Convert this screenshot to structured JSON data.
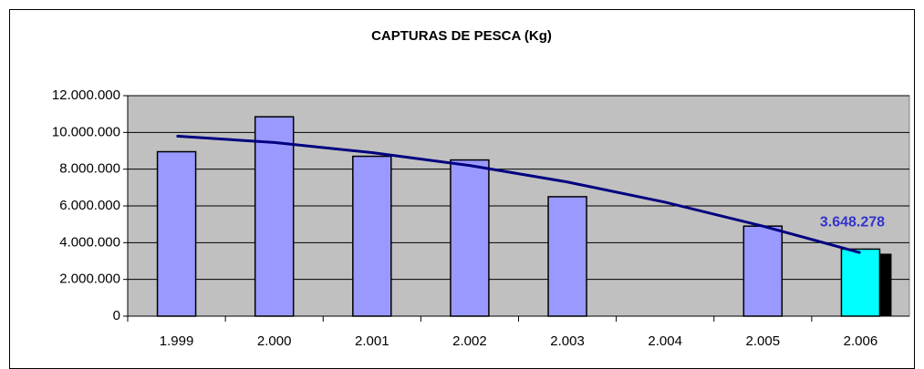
{
  "chart_data": {
    "type": "bar",
    "title": "CAPTURAS DE PESCA (Kg)",
    "categories": [
      "1.999",
      "2.000",
      "2.001",
      "2.002",
      "2.003",
      "2.004",
      "2.005",
      "2.006"
    ],
    "values": [
      8950000,
      10850000,
      8700000,
      8500000,
      6500000,
      null,
      4900000,
      3648278
    ],
    "value_labels": [
      null,
      null,
      null,
      null,
      null,
      null,
      null,
      "3.648.278"
    ],
    "colors": [
      "#9999ff",
      "#9999ff",
      "#9999ff",
      "#9999ff",
      "#9999ff",
      "#9999ff",
      "#9999ff",
      "#00ffff"
    ],
    "trend": {
      "color": "#000080",
      "values": [
        9800000,
        9450000,
        8900000,
        8200000,
        7300000,
        6200000,
        4900000,
        3450000
      ]
    },
    "ylim": [
      0,
      12000000
    ],
    "yticks": [
      0,
      {
        "value": 2000000,
        "label": "2.000.000"
      },
      {
        "value": 4000000,
        "label": "4.000.000"
      },
      {
        "value": 6000000,
        "label": "6.000.000"
      },
      {
        "value": 8000000,
        "label": "8.000.000"
      },
      {
        "value": 10000000,
        "label": "10.000.000"
      },
      {
        "value": 12000000,
        "label": "12.000.000"
      }
    ],
    "grid": true
  }
}
